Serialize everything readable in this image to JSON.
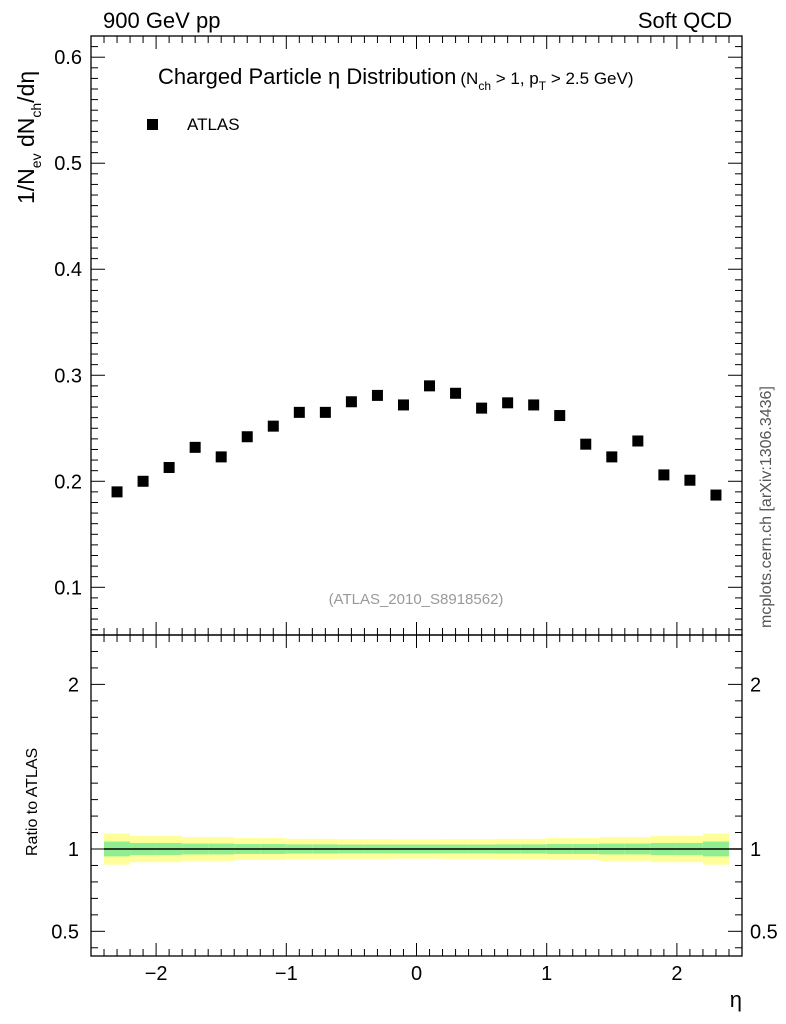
{
  "header": {
    "left": "900 GeV pp",
    "right": "Soft QCD",
    "side_label": "mcplots.cern.ch [arXiv:1306.3436]"
  },
  "chart_data": [
    {
      "type": "scatter",
      "panel": "main",
      "title": "Charged Particle η Distribution",
      "title_suffix": {
        "pre": "(N",
        "sub1": "ch",
        "mid": " > 1, p",
        "sub2": "T",
        "post": " > 2.5 GeV)"
      },
      "ylabel": {
        "a": "1/N",
        "a_sub": "ev",
        "b": " dN",
        "b_sub": "ch",
        "c": "/dη"
      },
      "analysis_tag": "(ATLAS_2010_S8918562)",
      "legend": "ATLAS",
      "legend_placement": "top-left",
      "series": [
        {
          "name": "ATLAS",
          "marker": "square",
          "color": "#000000",
          "x": [
            -2.3,
            -2.1,
            -1.9,
            -1.7,
            -1.5,
            -1.3,
            -1.1,
            -0.9,
            -0.7,
            -0.5,
            -0.3,
            -0.1,
            0.1,
            0.3,
            0.5,
            0.7,
            0.9,
            1.1,
            1.3,
            1.5,
            1.7,
            1.9,
            2.1,
            2.3
          ],
          "y": [
            0.19,
            0.2,
            0.213,
            0.232,
            0.223,
            0.242,
            0.252,
            0.265,
            0.265,
            0.275,
            0.281,
            0.272,
            0.29,
            0.283,
            0.269,
            0.274,
            0.272,
            0.262,
            0.235,
            0.223,
            0.238,
            0.206,
            0.201,
            0.187
          ]
        }
      ],
      "xlim": [
        -2.5,
        2.5
      ],
      "ylim": [
        0.055,
        0.62
      ],
      "y_ticks": [
        0.1,
        0.2,
        0.3,
        0.4,
        0.5,
        0.6
      ],
      "y_tick_labels": [
        "0.1",
        "0.2",
        "0.3",
        "0.4",
        "0.5",
        "0.6"
      ],
      "grid": false
    },
    {
      "type": "line",
      "panel": "ratio",
      "ylabel": "Ratio to ATLAS",
      "xlabel": "η",
      "xlim": [
        -2.5,
        2.5
      ],
      "ylim": [
        0.35,
        2.3
      ],
      "x_ticks": [
        -2,
        -1,
        0,
        1,
        2
      ],
      "x_tick_labels": [
        "−2",
        "−1",
        "0",
        "1",
        "2"
      ],
      "y_ticks": [
        0.5,
        1,
        2
      ],
      "y_tick_labels": [
        "0.5",
        "1",
        "2"
      ],
      "reference": 1.0,
      "bands": {
        "x_edges": [
          -2.4,
          -2.2,
          -2.0,
          -1.8,
          -1.6,
          -1.4,
          -1.2,
          -1.0,
          -0.8,
          -0.6,
          -0.4,
          -0.2,
          0.0,
          0.2,
          0.4,
          0.6,
          0.8,
          1.0,
          1.2,
          1.4,
          1.6,
          1.8,
          2.0,
          2.2,
          2.4
        ],
        "stat_half_width": [
          0.045,
          0.037,
          0.037,
          0.033,
          0.033,
          0.03,
          0.03,
          0.028,
          0.028,
          0.027,
          0.027,
          0.027,
          0.027,
          0.027,
          0.027,
          0.028,
          0.028,
          0.03,
          0.03,
          0.033,
          0.033,
          0.037,
          0.037,
          0.045
        ],
        "total_half_width": [
          0.095,
          0.08,
          0.08,
          0.072,
          0.072,
          0.066,
          0.066,
          0.062,
          0.062,
          0.06,
          0.06,
          0.058,
          0.058,
          0.06,
          0.06,
          0.062,
          0.062,
          0.066,
          0.066,
          0.072,
          0.072,
          0.08,
          0.08,
          0.095
        ],
        "inner_color": "#90ee90",
        "outer_color": "#ffff99"
      }
    }
  ]
}
